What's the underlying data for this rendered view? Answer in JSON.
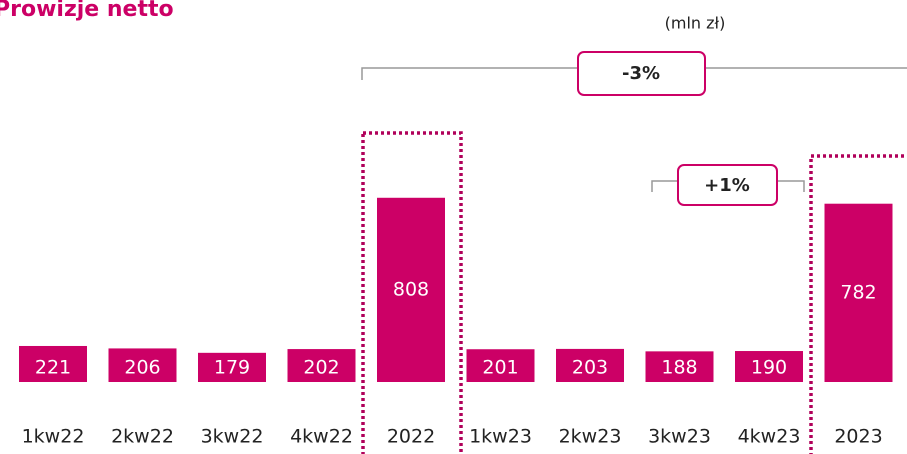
{
  "chart_data": {
    "type": "bar",
    "title": "Prowizje netto",
    "unit": "(mln zł)",
    "categories": [
      "1kw22",
      "2kw22",
      "3kw22",
      "4kw22",
      "2022",
      "1kw23",
      "2kw23",
      "3kw23",
      "4kw23",
      "2023"
    ],
    "values": [
      221,
      206,
      179,
      202,
      808,
      201,
      203,
      188,
      190,
      782
    ],
    "color": "#cc0066",
    "annotations": [
      "-3%",
      "+1%"
    ]
  }
}
